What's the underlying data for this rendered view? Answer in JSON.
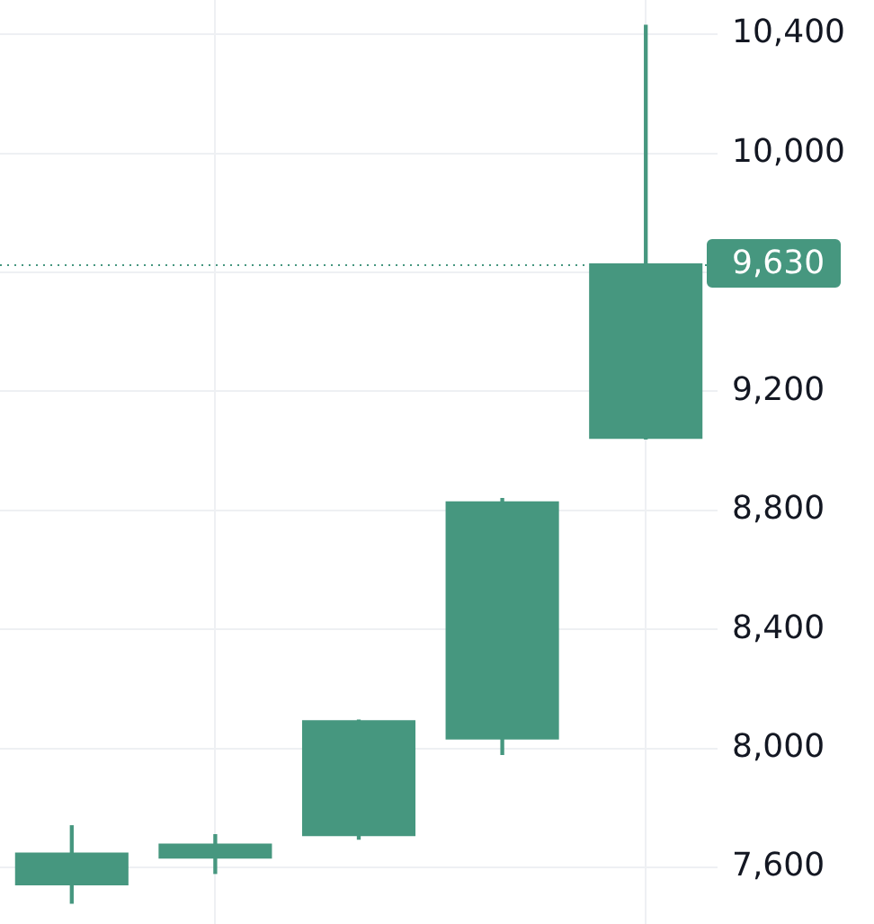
{
  "chart_data": {
    "type": "candlestick",
    "categories": [
      null,
      null,
      null,
      null,
      null
    ],
    "ohlc": [
      [
        7540,
        7740,
        7480,
        7650
      ],
      [
        7630,
        7710,
        7580,
        7680
      ],
      [
        7705,
        8095,
        7695,
        8095
      ],
      [
        8030,
        8840,
        7980,
        8830
      ],
      [
        9040,
        10430,
        9040,
        9630
      ]
    ],
    "color": "#46977f",
    "ylim": [
      7410,
      10515
    ],
    "yticks": [
      {
        "value": 7600,
        "label": "7,600"
      },
      {
        "value": 8000,
        "label": "8,000"
      },
      {
        "value": 8400,
        "label": "8,400"
      },
      {
        "value": 8800,
        "label": "8,800"
      },
      {
        "value": 9200,
        "label": "9,200"
      },
      {
        "value": 9600,
        "label": null
      },
      {
        "value": 10000,
        "label": "10,000"
      },
      {
        "value": 10400,
        "label": "10,400"
      }
    ],
    "grid": true,
    "tick_labels": "y",
    "ref_lines": [
      {
        "axis": "y",
        "value": 9630,
        "label": "9,630",
        "color": "#46977f",
        "line_style": "dotted"
      }
    ]
  }
}
